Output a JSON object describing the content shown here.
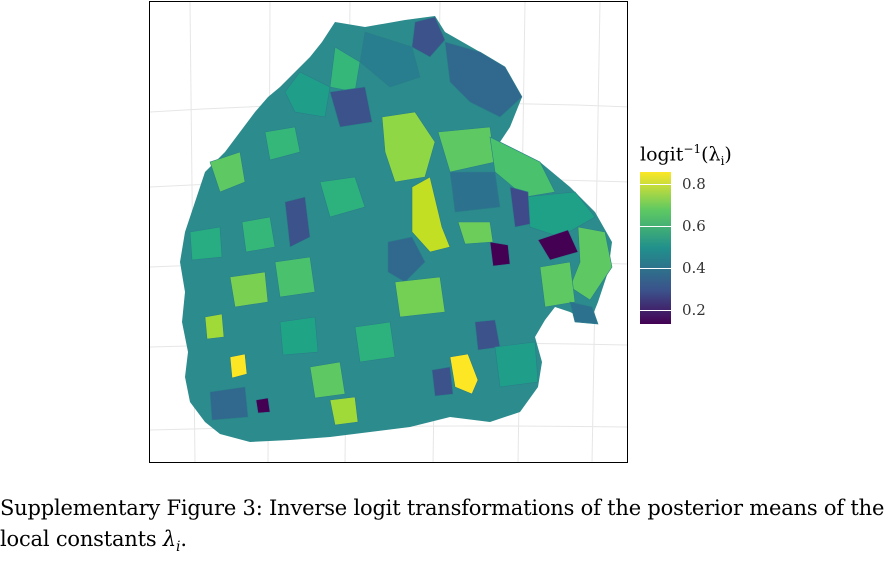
{
  "legend": {
    "title_main": "logit",
    "title_sup": "−1",
    "title_arg": "(λ",
    "title_sub": "i",
    "title_close": ")",
    "ticks": [
      "0.8",
      "0.6",
      "0.4",
      "0.2"
    ],
    "tick_values": [
      0.8,
      0.6,
      0.4,
      0.2
    ],
    "range": [
      0.13,
      0.87
    ],
    "palette": [
      "#440154",
      "#3b528b",
      "#21908c",
      "#5ec962",
      "#fde725"
    ]
  },
  "caption": {
    "line1": "Supplementary Figure 3: Inverse logit transformations of the posterior means of the",
    "line2_text": "local constants ",
    "line2_symbol": "λ",
    "line2_sub": "i",
    "line2_end": "."
  }
}
